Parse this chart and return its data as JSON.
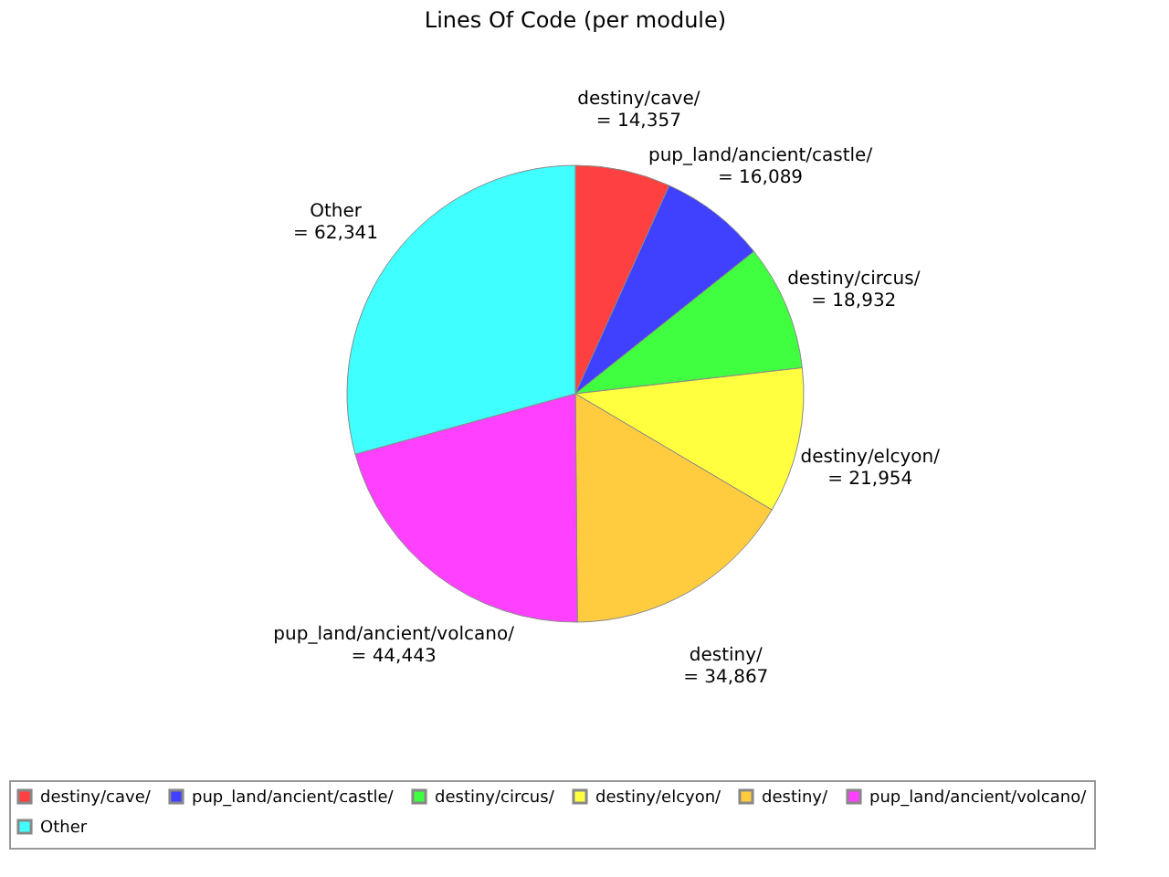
{
  "chart_data": {
    "type": "pie",
    "title": "Lines Of Code (per module)",
    "categories": [
      "destiny/cave/",
      "pup_land/ancient/castle/",
      "destiny/circus/",
      "destiny/elcyon/",
      "destiny/",
      "pup_land/ancient/volcano/",
      "Other"
    ],
    "values": [
      14357,
      16089,
      18932,
      21954,
      34867,
      44443,
      62341
    ],
    "value_labels": [
      "= 14,357",
      "= 16,089",
      "= 18,932",
      "= 21,954",
      "= 34,867",
      "= 44,443",
      "= 62,341"
    ],
    "colors": [
      "#ff4040",
      "#4040ff",
      "#40ff40",
      "#ffff40",
      "#ffcc40",
      "#ff40ff",
      "#40ffff"
    ],
    "legend": "bottom"
  }
}
